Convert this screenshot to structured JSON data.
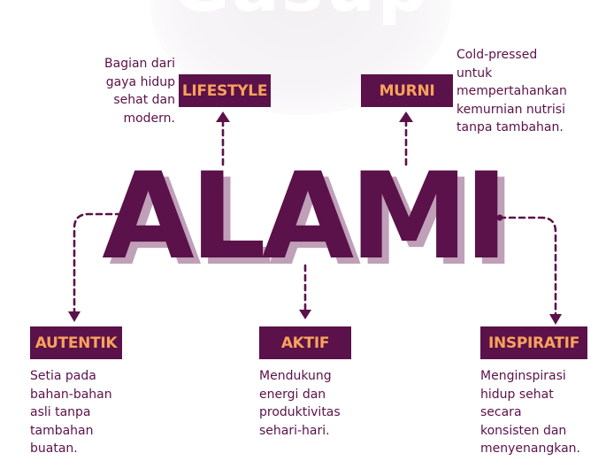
{
  "background_word": "Gasup",
  "main_word": "ALAMI",
  "colors": {
    "primary": "#5b1149",
    "accent": "#f7a25c",
    "shadow": "#bfa0b8"
  },
  "nodes": {
    "lifestyle": {
      "label": "LIFESTYLE",
      "description": "Bagian dari\ngaya hidup\nsehat dan\nmodern."
    },
    "murni": {
      "label": "MURNI",
      "description": "Cold-pressed\nuntuk\nmempertahankan\nkemurnian nutrisi\ntanpa tambahan."
    },
    "autentik": {
      "label": "AUTENTIK",
      "description": "Setia pada\nbahan-bahan\nasli tanpa\ntambahan\nbuatan."
    },
    "aktif": {
      "label": "AKTIF",
      "description": "Mendukung\nenergi dan\nproduktivitas\nsehari-hari."
    },
    "inspiratif": {
      "label": "INSPIRATIF",
      "description": "Menginspirasi\nhidup sehat\nsecara\nkonsisten dan\nmenyenangkan."
    }
  }
}
